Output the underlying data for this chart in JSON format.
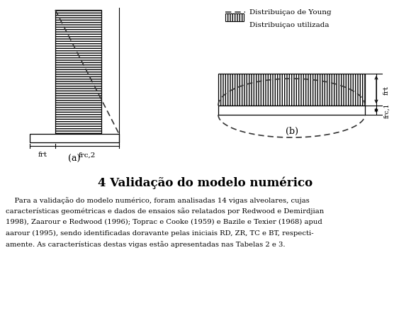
{
  "bg_color": "#ffffff",
  "fig_width": 5.8,
  "fig_height": 4.64,
  "dpi": 100,
  "legend_dashed_label": "Distribuiçao de Young",
  "legend_hatched_label": "Distribuiçao utilizada",
  "subplot_a_label": "(a)",
  "subplot_b_label": "(b)",
  "section_title": "4 Validação do modelo numérico",
  "body_lines": [
    "    Para a validação do modelo numérico, foram analisadas 14 vigas alveolares, cujas",
    "características geométricas e dados de ensaios são relatados por Redwood e Demirdjian",
    "1998), Zaarour e Redwood (1996); Toprac e Cooke (1959) e Bazile e Texier (1968) apud",
    "aarour (1995), sendo identificadas doravante pelas iniciais RD, ZR, TC e BT, respecti-",
    "amente. As características destas vigas estão apresentadas nas Tabelas 2 e 3."
  ],
  "label_frt_a": "frt",
  "label_frc2_a": "frc,2",
  "label_frt_b": "frt",
  "label_frc1_b": "frc,1"
}
